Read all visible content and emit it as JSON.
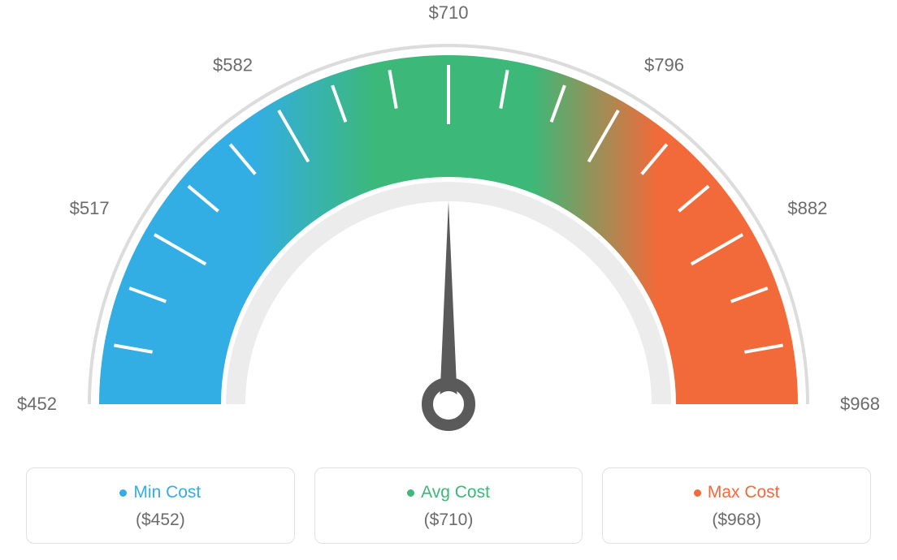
{
  "gauge": {
    "type": "gauge",
    "min_value": 452,
    "max_value": 968,
    "avg_value": 710,
    "needle_value": 710,
    "tick_labels": [
      "$452",
      "$517",
      "$582",
      "$710",
      "$796",
      "$882",
      "$968"
    ],
    "tick_angles_deg": [
      180,
      150,
      120,
      90,
      60,
      30,
      0
    ],
    "minor_tick_count": 2,
    "colors": {
      "min": "#33aee5",
      "avg": "#3cb878",
      "max": "#f26a3a",
      "background": "#ffffff",
      "tick_label": "#6b6b6b",
      "tick_line": "#ffffff",
      "needle": "#5a5a5a",
      "outer_ring": "#dcdcdc",
      "inner_ring": "#ececec",
      "card_border": "#e0e0e0"
    },
    "geometry": {
      "outer_radius": 444,
      "arc_outer_r": 430,
      "arc_inner_r": 280,
      "tick_outer_r": 418,
      "tick_inner_major": 345,
      "tick_inner_minor": 370,
      "label_radius": 482,
      "needle_length": 250,
      "tick_stroke_width": 4
    },
    "label_fontsize": 22
  },
  "legend": {
    "min": {
      "title": "Min Cost",
      "value": "($452)",
      "color": "#33aee5"
    },
    "avg": {
      "title": "Avg Cost",
      "value": "($710)",
      "color": "#3cb878"
    },
    "max": {
      "title": "Max Cost",
      "value": "($968)",
      "color": "#f26a3a"
    }
  }
}
